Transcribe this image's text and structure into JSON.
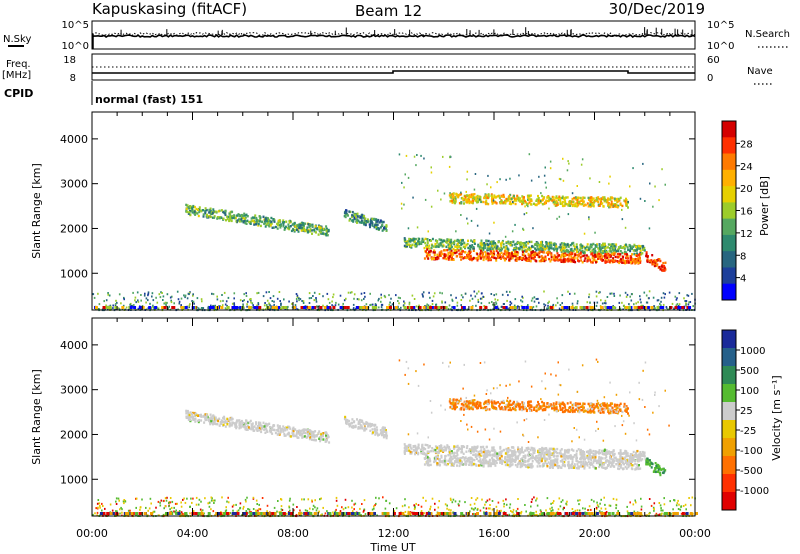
{
  "header": {
    "station": "Kapuskasing (fitACF)",
    "beam": "Beam 12",
    "date": "30/Dec/2019"
  },
  "status_panels": {
    "nsky_label": "N.Sky",
    "nsearch_label": "N.Search",
    "nsky_ticks": [
      "10^5",
      "10^0"
    ],
    "nsearch_ticks": [
      "10^5",
      "10^0"
    ],
    "freq_label": "Freq.",
    "freq_unit": "[MHz]",
    "freq_ticks": [
      "18",
      "8"
    ],
    "nave_label": "Nave",
    "nave_ticks": [
      "60",
      "0"
    ],
    "cpid_label": "CPID",
    "cpid_value": "normal (fast) 151"
  },
  "chart_data": [
    {
      "type": "heatmap",
      "name": "power",
      "ylabel": "Slant Range [km]",
      "xlabel": "",
      "x_ticks": [
        "00:00",
        "04:00",
        "08:00",
        "12:00",
        "16:00",
        "20:00",
        "00:00"
      ],
      "x_range_hours": [
        0,
        24
      ],
      "y_ticks": [
        1000,
        2000,
        3000,
        4000
      ],
      "ylim": [
        180,
        4600
      ],
      "colorbar_label": "Power [dB]",
      "colorbar_ticks": [
        "28",
        "24",
        "20",
        "16",
        "12",
        "8",
        "4"
      ],
      "colorbar_colors": [
        "#d40000",
        "#ff3000",
        "#ff7a00",
        "#ffb000",
        "#e6d000",
        "#9ccc2a",
        "#55a860",
        "#2e8a6e",
        "#286680",
        "#1d3f9a",
        "#0000ff"
      ],
      "echo_bands": [
        {
          "t0": 3.7,
          "t1": 9.4,
          "r0": 2450,
          "r1": 1950,
          "level": 12
        },
        {
          "t0": 10.0,
          "t1": 11.7,
          "r0": 2350,
          "r1": 2050,
          "level": 10
        },
        {
          "t0": 12.4,
          "t1": 22.0,
          "r0": 1700,
          "r1": 1550,
          "level": 13
        },
        {
          "t0": 13.2,
          "t1": 21.8,
          "r0": 1450,
          "r1": 1350,
          "level": 24
        },
        {
          "t0": 14.2,
          "t1": 21.3,
          "r0": 2700,
          "r1": 2600,
          "level": 18
        },
        {
          "t0": 22.0,
          "t1": 22.8,
          "r0": 1400,
          "r1": 1150,
          "level": 26
        }
      ]
    },
    {
      "type": "heatmap",
      "name": "velocity",
      "ylabel": "Slant Range [km]",
      "xlabel": "Time UT",
      "x_ticks": [
        "00:00",
        "04:00",
        "08:00",
        "12:00",
        "16:00",
        "20:00",
        "00:00"
      ],
      "x_range_hours": [
        0,
        24
      ],
      "y_ticks": [
        1000,
        2000,
        3000,
        4000
      ],
      "ylim": [
        180,
        4600
      ],
      "colorbar_label": "Velocity [m s⁻¹]",
      "colorbar_ticks": [
        "1000",
        "500",
        "100",
        "25",
        "-25",
        "-100",
        "-500",
        "-1000"
      ],
      "colorbar_colors": [
        "#1a2a9a",
        "#25608a",
        "#2e8a55",
        "#55bb30",
        "#cccccc",
        "#e8c800",
        "#f0a000",
        "#ff7000",
        "#ff3000",
        "#e00000"
      ],
      "echo_bands": [
        {
          "t0": 3.7,
          "t1": 9.4,
          "r0": 2450,
          "r1": 1950,
          "v": 0
        },
        {
          "t0": 10.0,
          "t1": 11.7,
          "r0": 2350,
          "r1": 2050,
          "v": 0
        },
        {
          "t0": 12.4,
          "t1": 22.0,
          "r0": 1700,
          "r1": 1550,
          "v": 0
        },
        {
          "t0": 13.2,
          "t1": 21.8,
          "r0": 1450,
          "r1": 1350,
          "v": 0
        },
        {
          "t0": 14.2,
          "t1": 21.3,
          "r0": 2700,
          "r1": 2600,
          "v": -300
        },
        {
          "t0": 22.0,
          "t1": 22.8,
          "r0": 1400,
          "r1": 1150,
          "v": 150
        }
      ]
    }
  ]
}
